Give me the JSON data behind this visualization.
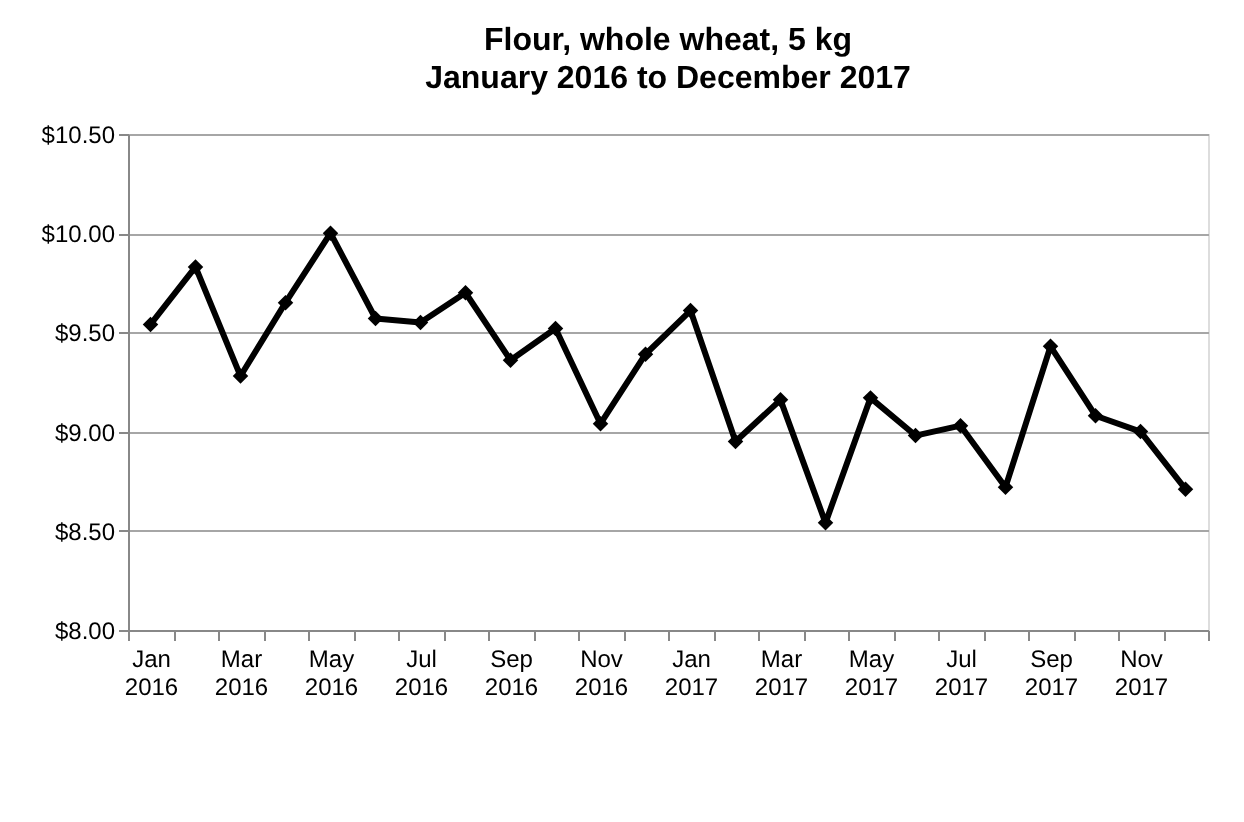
{
  "chart_data": {
    "type": "line",
    "title": "Flour, whole wheat, 5 kg",
    "subtitle": "January 2016 to December 2017",
    "categories": [
      "Jan 2016",
      null,
      "Mar 2016",
      null,
      "May 2016",
      null,
      "Jul 2016",
      null,
      "Sep 2016",
      null,
      "Nov 2016",
      null,
      "Jan 2017",
      null,
      "Mar 2017",
      null,
      "May 2017",
      null,
      "Jul 2017",
      null,
      "Sep 2017",
      null,
      "Nov 2017",
      null
    ],
    "series": [
      {
        "color": "#000000",
        "values": [
          9.54,
          9.83,
          9.28,
          9.65,
          10.0,
          9.57,
          9.55,
          9.7,
          9.36,
          9.52,
          9.04,
          9.39,
          9.61,
          8.95,
          9.16,
          8.54,
          9.17,
          8.98,
          9.03,
          8.72,
          9.43,
          9.08,
          9.0,
          8.71
        ]
      }
    ],
    "ylim": [
      8.0,
      10.5
    ],
    "yticks": [
      {
        "value": 8.0,
        "label": "$8.00"
      },
      {
        "value": 8.5,
        "label": "$8.50"
      },
      {
        "value": 9.0,
        "label": "$9.00"
      },
      {
        "value": 9.5,
        "label": "$9.50"
      },
      {
        "value": 10.0,
        "label": "$10.00"
      },
      {
        "value": 10.5,
        "label": "$10.50"
      }
    ],
    "grid": "y",
    "marker": "diamond",
    "line_style": "solid"
  }
}
